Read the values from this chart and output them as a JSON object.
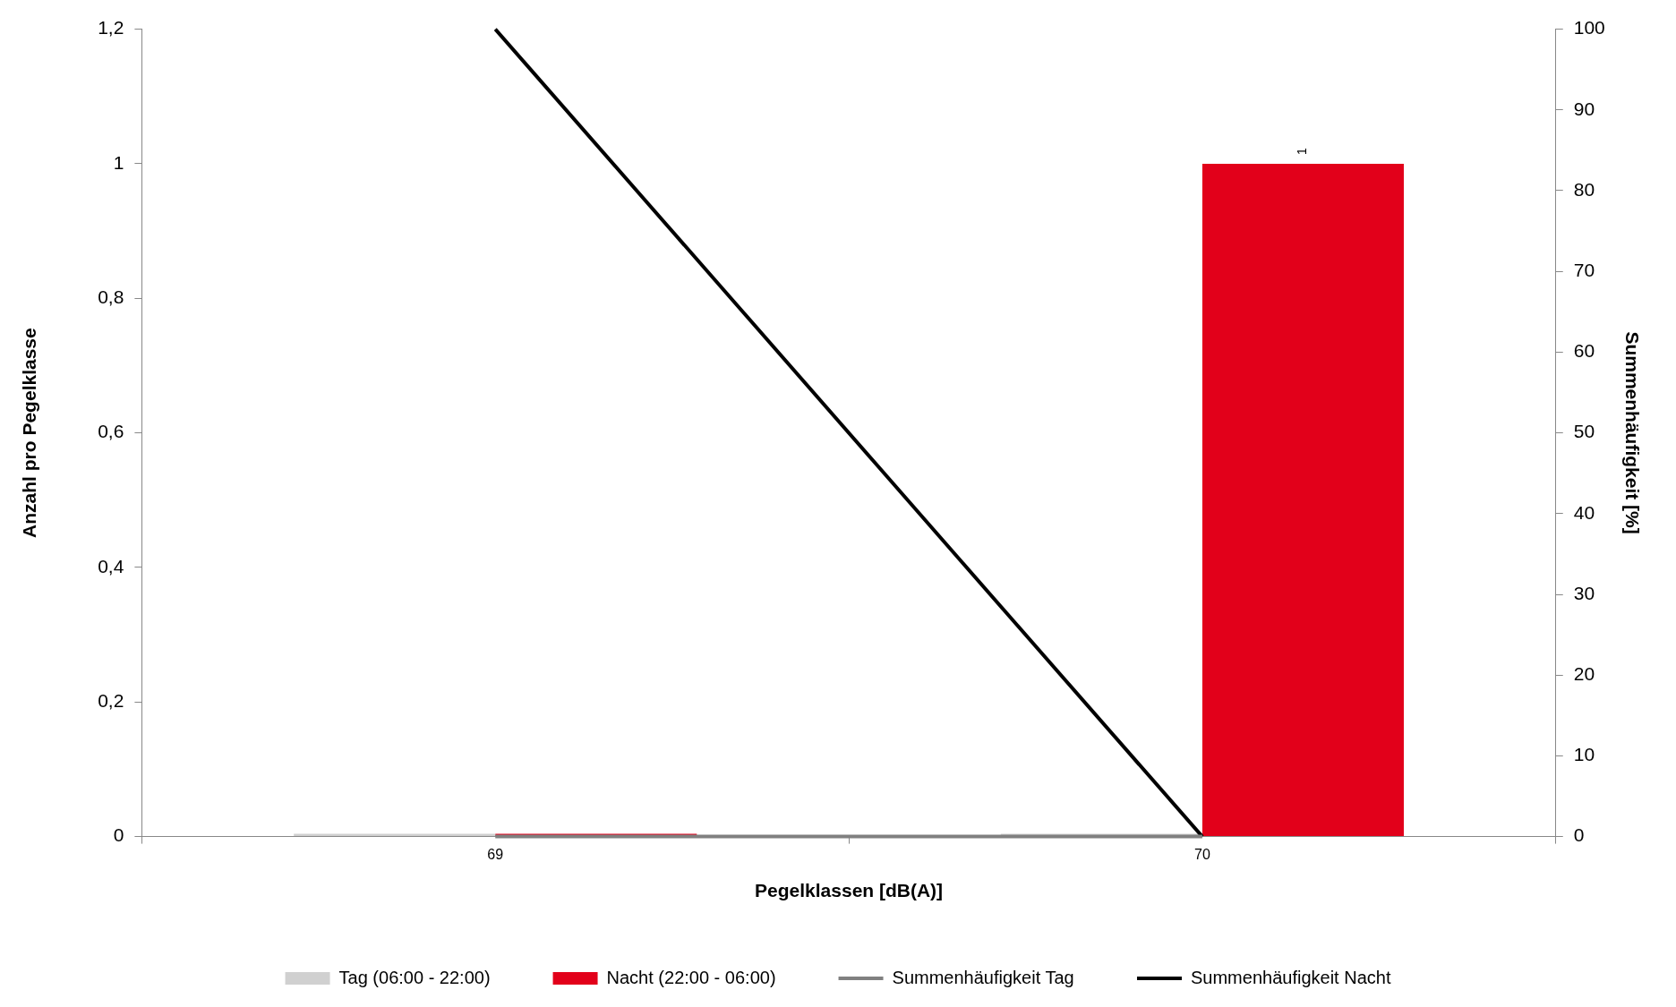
{
  "chart_data": {
    "type": "bar",
    "xlabel": "Pegelklassen [dB(A)]",
    "ylabel": "Anzahl pro Pegelklasse",
    "y2label": "Summenhäufigkeit [%]",
    "categories": [
      "69",
      "70"
    ],
    "series": [
      {
        "name": "Tag (06:00 - 22:00)",
        "color": "#d0d0d0",
        "values": [
          0,
          0
        ]
      },
      {
        "name": "Nacht (22:00 - 06:00)",
        "color": "#e2001a",
        "values": [
          0,
          1
        ],
        "value_labels": [
          null,
          "1"
        ]
      },
      {
        "name": "Summenhäufigkeit Tag",
        "type": "line",
        "axis": "y2",
        "color": "#808080",
        "values": [
          0,
          0
        ]
      },
      {
        "name": "Summenhäufigkeit Nacht",
        "type": "line",
        "axis": "y2",
        "color": "#000000",
        "values": [
          100,
          0
        ]
      }
    ],
    "ylim": [
      0,
      1.2
    ],
    "yticks": [
      0,
      {
        "value": 0.2,
        "label": "0,2"
      },
      {
        "value": 0.4,
        "label": "0,4"
      },
      {
        "value": 0.6,
        "label": "0,6"
      },
      {
        "value": 0.8,
        "label": "0,8"
      },
      1,
      {
        "value": 1.2,
        "label": "1,2"
      }
    ],
    "y2lim": [
      0,
      100
    ],
    "y2ticks": [
      0,
      10,
      20,
      30,
      40,
      50,
      60,
      70,
      80,
      90,
      100
    ],
    "grid": false,
    "legend": "bottom",
    "marker": "none"
  }
}
